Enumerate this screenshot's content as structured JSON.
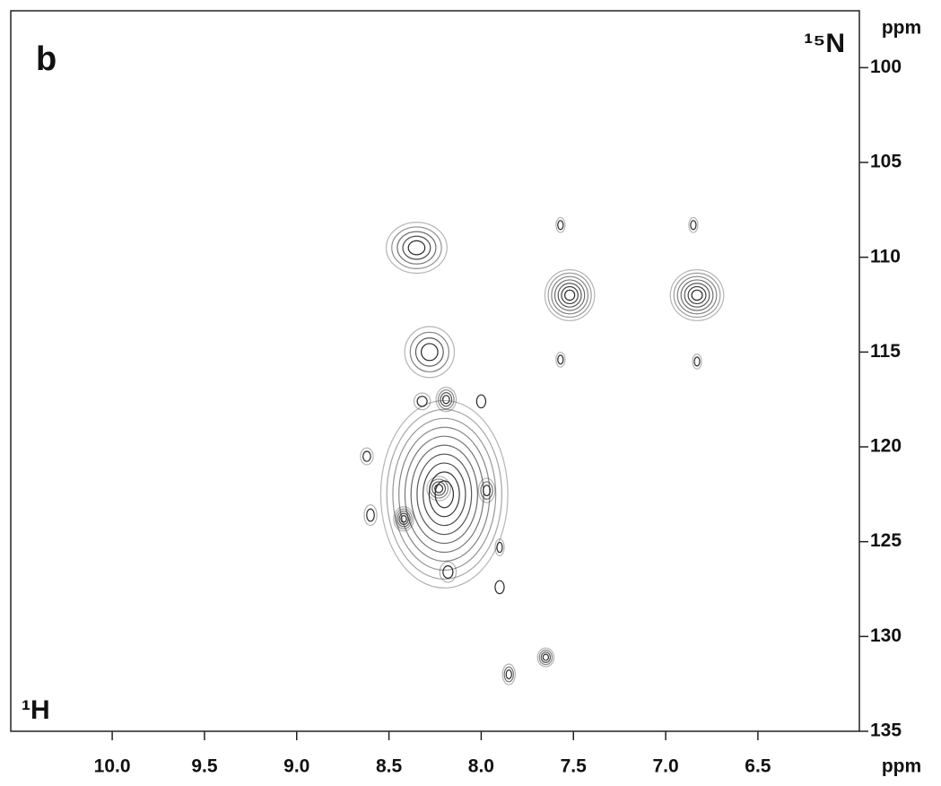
{
  "chart_data": {
    "type": "contour",
    "panel_label": "b",
    "x_label": "¹H",
    "x_unit": "ppm",
    "y_label": "¹⁵N",
    "y_unit": "ppm",
    "x": [
      8.35,
      7.52,
      6.83,
      7.57,
      6.85,
      7.57,
      6.83,
      8.28,
      8.19,
      8.32,
      8.0,
      8.2,
      8.42,
      8.23,
      7.97,
      8.6,
      8.62,
      7.9,
      7.9,
      8.18,
      7.65,
      7.85
    ],
    "y": [
      109.5,
      112,
      112,
      108.3,
      108.3,
      115.4,
      115.5,
      115,
      117.5,
      117.6,
      117.6,
      122.5,
      123.8,
      122.2,
      122.3,
      123.6,
      120.5,
      125.3,
      127.4,
      126.6,
      131.1,
      132
    ],
    "x_extent": [
      0.15,
      0.12,
      0.13,
      0.01,
      0.01,
      0.01,
      0.01,
      0.12,
      0.04,
      0.03,
      0.01,
      0.33,
      0.04,
      0.05,
      0.03,
      0.02,
      0.02,
      0.01,
      0.01,
      0.03,
      0.03,
      0.02
    ],
    "y_extent": [
      1.2,
      1.2,
      1.2,
      0.25,
      0.25,
      0.25,
      0.25,
      1.2,
      0.5,
      0.3,
      0.2,
      4.8,
      0.5,
      0.5,
      0.5,
      0.4,
      0.3,
      0.3,
      0.2,
      0.4,
      0.35,
      0.4
    ],
    "levels": [
      5,
      7,
      7,
      2,
      2,
      2,
      2,
      4,
      4,
      2,
      1,
      10,
      5,
      4,
      3,
      2,
      2,
      2,
      1,
      2,
      4,
      3
    ],
    "color": "#2a2a2a",
    "xlim": [
      10.55,
      5.95
    ],
    "xticks": [
      {
        "value": 10,
        "label": "10.0"
      },
      9.5,
      {
        "value": 9,
        "label": "9.0"
      },
      8.5,
      {
        "value": 8,
        "label": "8.0"
      },
      7.5,
      {
        "value": 7,
        "label": "7.0"
      },
      6.5
    ],
    "ylim": [
      97,
      135
    ],
    "yticks": [
      100,
      105,
      110,
      115,
      120,
      125,
      130,
      135
    ]
  }
}
